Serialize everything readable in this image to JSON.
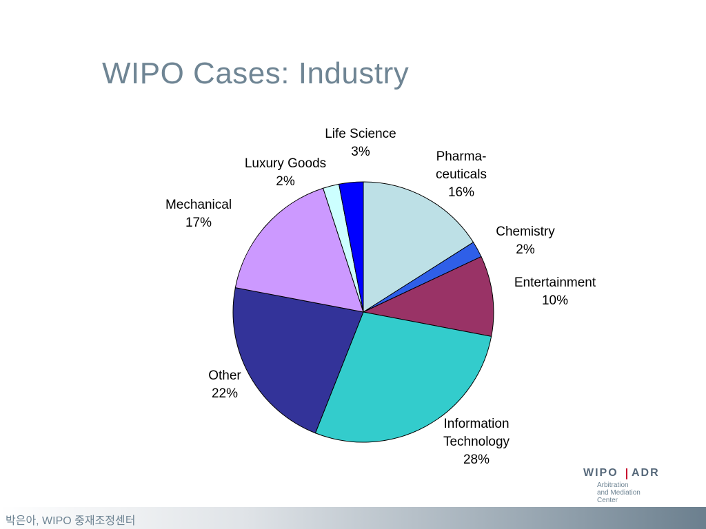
{
  "slide": {
    "title": "WIPO Cases: Industry",
    "footer_text": "박은아, WIPO 중재조정센터"
  },
  "logo": {
    "wipo": "WIPO",
    "adr": "ADR",
    "subtitle_lines": [
      "Arbitration",
      "and Mediation",
      "Center"
    ]
  },
  "chart_data": {
    "type": "pie",
    "title": "WIPO Cases: Industry",
    "start": "12 o'clock",
    "direction": "clockwise",
    "slices": [
      {
        "label_lines": [
          "Pharma-",
          "ceuticals"
        ],
        "percent_label": "16%",
        "value": 16,
        "color": "#bde0e6"
      },
      {
        "label_lines": [
          "Chemistry"
        ],
        "percent_label": "2%",
        "value": 2,
        "color": "#2f5fe8"
      },
      {
        "label_lines": [
          "Entertainment"
        ],
        "percent_label": "10%",
        "value": 10,
        "color": "#993366"
      },
      {
        "label_lines": [
          "Information",
          "Technology"
        ],
        "percent_label": "28%",
        "value": 28,
        "color": "#33cccc"
      },
      {
        "label_lines": [
          "Other"
        ],
        "percent_label": "22%",
        "value": 22,
        "color": "#333399"
      },
      {
        "label_lines": [
          "Mechanical"
        ],
        "percent_label": "17%",
        "value": 17,
        "color": "#cc99ff"
      },
      {
        "label_lines": [
          "Luxury Goods"
        ],
        "percent_label": "2%",
        "value": 2,
        "color": "#ccffff"
      },
      {
        "label_lines": [
          "Life Science"
        ],
        "percent_label": "3%",
        "value": 3,
        "color": "#0000ff"
      }
    ]
  }
}
